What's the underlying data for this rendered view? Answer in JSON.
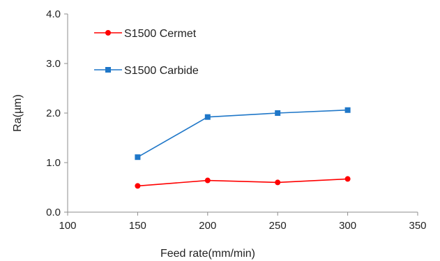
{
  "chart_data": {
    "type": "line",
    "title": "",
    "xlabel": "Feed rate(mm/min)",
    "ylabel": "Ra(µm)",
    "xlim": [
      100,
      350
    ],
    "ylim": [
      0,
      4
    ],
    "x_ticks": [
      "100",
      "150",
      "200",
      "250",
      "300",
      "350"
    ],
    "y_ticks": [
      "0.0",
      "1.0",
      "2.0",
      "3.0",
      "4.0"
    ],
    "grid": false,
    "legend_position": "top-left",
    "series": [
      {
        "name": "S1500 Cermet",
        "color": "#ff0000",
        "marker": "circle",
        "x": [
          150,
          200,
          250,
          300
        ],
        "y": [
          0.53,
          0.64,
          0.6,
          0.67
        ]
      },
      {
        "name": "S1500 Carbide",
        "color": "#1f77c8",
        "marker": "square",
        "x": [
          150,
          200,
          250,
          300
        ],
        "y": [
          1.11,
          1.92,
          2.0,
          2.06
        ]
      }
    ]
  }
}
